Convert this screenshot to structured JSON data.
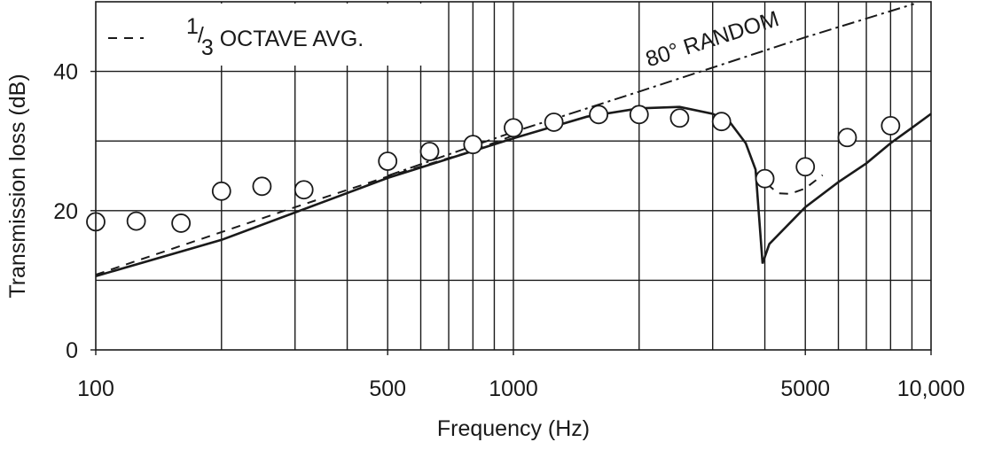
{
  "chart_data": {
    "type": "line",
    "xlabel": "Frequency (Hz)",
    "ylabel": "Transmission loss (dB)",
    "xscale": "log",
    "xlim": [
      100,
      10000
    ],
    "ylim": [
      0,
      50
    ],
    "xticks": [
      100,
      500,
      1000,
      5000,
      {
        "value": 10000,
        "label": "10,000"
      }
    ],
    "yticks": [
      0,
      20,
      40
    ],
    "xgrid": [
      200,
      300,
      400,
      500,
      600,
      700,
      800,
      900,
      1000,
      2000,
      3000,
      4000,
      5000,
      6000,
      7000,
      8000,
      9000
    ],
    "ygrid": [
      10,
      20,
      30,
      40
    ],
    "grid": true,
    "legend": "upper left",
    "series": [
      {
        "name": "1/3 OCTAVE AVG.",
        "style": "dashed",
        "color": "#1a1a1a",
        "x": [
          100,
          300,
          500,
          800,
          1000,
          2000,
          3800,
          4000,
          4300,
          4600,
          5000,
          5500
        ],
        "values": [
          10.8,
          20.5,
          24.9,
          28.6,
          30.8,
          null,
          25.5,
          24.1,
          22.5,
          22.4,
          23.2,
          25.1
        ]
      },
      {
        "name": "80° RANDOM",
        "style": "dashdot",
        "color": "#1a1a1a",
        "x": [
          500,
          800,
          1000,
          2000,
          5000,
          9100
        ],
        "values": [
          25.0,
          29.3,
          31.3,
          37.1,
          44.9,
          49.7
        ]
      },
      {
        "style": "solid",
        "color": "#1a1a1a",
        "x": [
          100,
          200,
          500,
          1000,
          1500,
          2000,
          2500,
          3000,
          3300,
          3600,
          3800,
          3950,
          4100,
          4500,
          5000,
          6000,
          7000,
          8000,
          9000,
          10000
        ],
        "values": [
          10.6,
          15.8,
          24.7,
          30.4,
          33.5,
          34.7,
          34.9,
          33.9,
          32.7,
          29.7,
          25.9,
          12.4,
          15.2,
          17.7,
          20.5,
          24.1,
          26.8,
          29.7,
          31.9,
          33.9
        ]
      },
      {
        "style": "markers",
        "color": "#1a1a1a",
        "x": [
          100,
          125,
          160,
          200,
          250,
          315,
          500,
          630,
          800,
          1000,
          1250,
          1600,
          2000,
          2500,
          3150,
          4000,
          5000,
          6300,
          8000
        ],
        "values": [
          18.4,
          18.5,
          18.2,
          22.8,
          23.5,
          23.0,
          27.1,
          28.5,
          29.5,
          31.9,
          32.7,
          33.8,
          33.8,
          33.3,
          32.8,
          24.6,
          26.3,
          30.5,
          32.2
        ]
      }
    ]
  }
}
